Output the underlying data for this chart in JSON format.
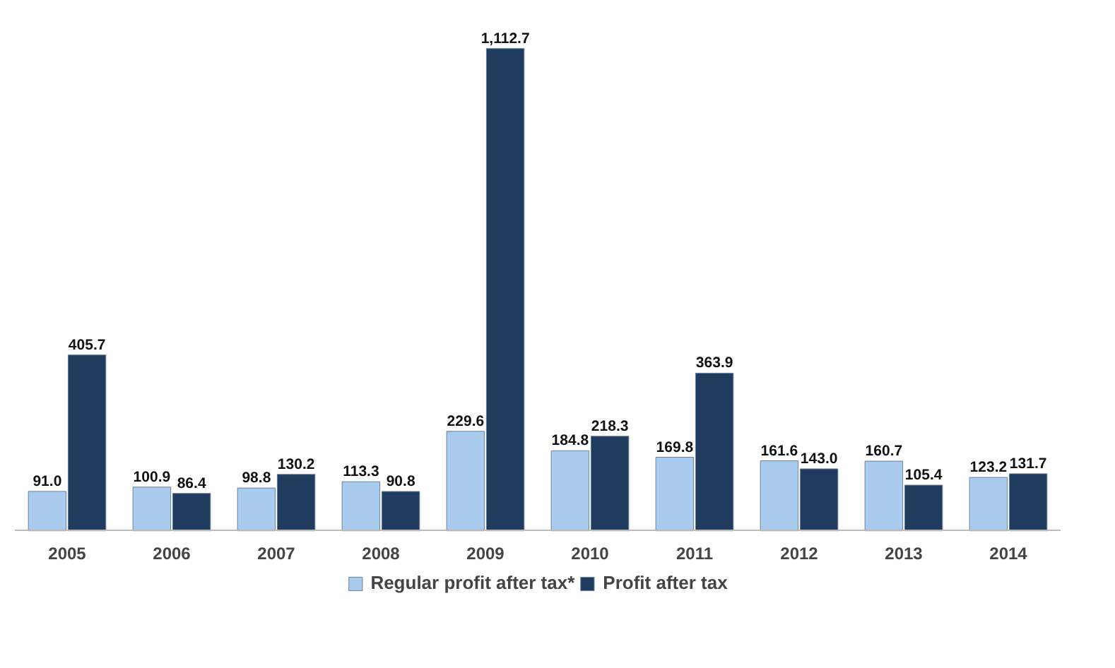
{
  "chart_data": {
    "type": "bar",
    "categories": [
      "2005",
      "2006",
      "2007",
      "2008",
      "2009",
      "2010",
      "2011",
      "2012",
      "2013",
      "2014"
    ],
    "series": [
      {
        "name": "Regular profit after tax*",
        "color": "#a9cbee",
        "values": [
          91.0,
          100.9,
          98.8,
          113.3,
          229.6,
          184.8,
          169.8,
          161.6,
          160.7,
          123.2
        ],
        "value_labels": [
          "91.0",
          "100.9",
          "98.8",
          "113.3",
          "229.6",
          "184.8",
          "169.8",
          "161.6",
          "160.7",
          "123.2"
        ]
      },
      {
        "name": "Profit after tax",
        "color": "#1f3b5e",
        "values": [
          405.7,
          86.4,
          130.2,
          90.8,
          1112.7,
          218.3,
          363.9,
          143.0,
          105.4,
          131.7
        ],
        "value_labels": [
          "405.7",
          "86.4",
          "130.2",
          "90.8",
          "1,112.7",
          "218.3",
          "363.9",
          "143.0",
          "105.4",
          "131.7"
        ]
      }
    ],
    "data_labels": true,
    "legend": "bottom",
    "grid": false
  }
}
